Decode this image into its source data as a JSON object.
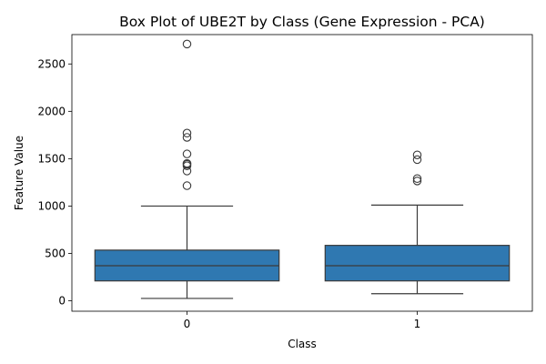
{
  "chart_data": {
    "type": "box",
    "title": "Box Plot of UBE2T by Class (Gene Expression - PCA)",
    "xlabel": "Class",
    "ylabel": "Feature Value",
    "categories": [
      "0",
      "1"
    ],
    "ylim": [
      -110,
      2810
    ],
    "yticks": [
      0,
      500,
      1000,
      1500,
      2000,
      2500
    ],
    "grid": false,
    "box_color": "#2f78b1",
    "line_color": "#3a3a3a",
    "boxes": [
      {
        "category": "0",
        "whisker_low": 25,
        "q1": 210,
        "median": 370,
        "q3": 535,
        "whisker_high": 1000,
        "outliers": [
          1215,
          1370,
          1425,
          1440,
          1450,
          1550,
          1725,
          1770,
          2710
        ]
      },
      {
        "category": "1",
        "whisker_low": 75,
        "q1": 210,
        "median": 370,
        "q3": 585,
        "whisker_high": 1010,
        "outliers": [
          1265,
          1290,
          1490,
          1540
        ]
      }
    ]
  }
}
